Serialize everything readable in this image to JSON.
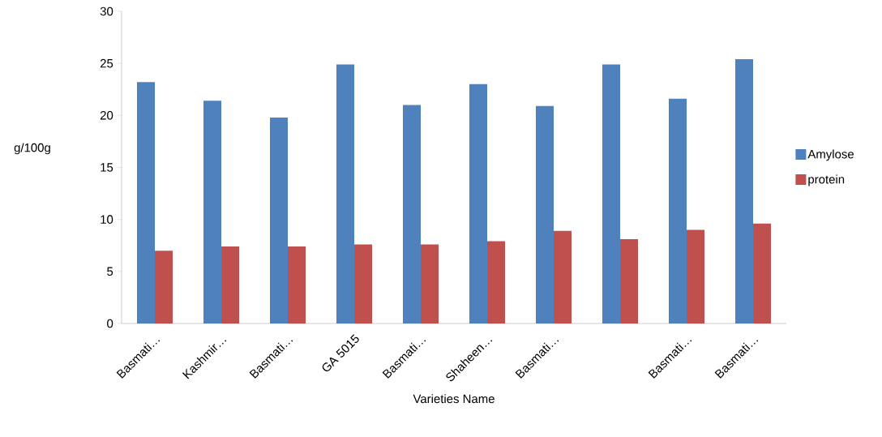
{
  "chart_data": {
    "type": "bar",
    "xlabel": "Varieties Name",
    "ylabel": "g/100g",
    "categories": [
      "Basmati…",
      "Kashmir…",
      "Basmati…",
      "GA 5015",
      "Basmati…",
      "Shaheen…",
      "Basmati…",
      null,
      "Basmati…",
      "Basmati…"
    ],
    "series": [
      {
        "name": "Amylose",
        "color": "#4f81bd",
        "values": [
          23.2,
          21.4,
          19.8,
          24.9,
          21.0,
          23.0,
          20.9,
          24.9,
          21.6,
          25.4
        ]
      },
      {
        "name": "protein",
        "color": "#c0504d",
        "values": [
          7.0,
          7.4,
          7.4,
          7.6,
          7.6,
          7.9,
          8.9,
          8.1,
          9.0,
          9.6
        ]
      }
    ],
    "ylim": [
      0,
      30
    ],
    "yticks": [
      0,
      5,
      10,
      15,
      20,
      25,
      30
    ],
    "legend": "right"
  }
}
